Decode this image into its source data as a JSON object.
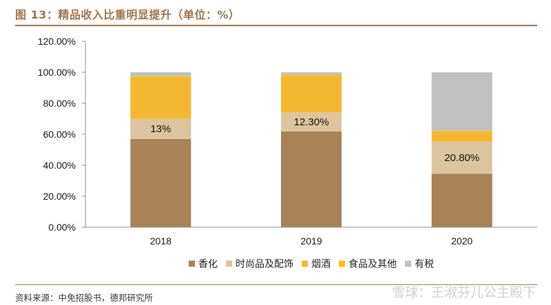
{
  "figure": {
    "title": "图 13：精品收入比重明显提升（单位：%）",
    "source": "资料来源：中免招股书，德邦研究所",
    "watermark": "雪球：王淑芬儿公主殿下"
  },
  "chart_data": {
    "type": "bar",
    "stacked": true,
    "title": "精品收入比重明显提升（单位：%）",
    "xlabel": "",
    "ylabel": "",
    "ylim": [
      0,
      120
    ],
    "yticks": [
      "0.00%",
      "20.00%",
      "40.00%",
      "60.00%",
      "80.00%",
      "100.00%",
      "120.00%"
    ],
    "categories": [
      "2018",
      "2019",
      "2020"
    ],
    "series": [
      {
        "name": "香化",
        "color": "#a98258",
        "values": [
          57.0,
          61.8,
          34.5
        ]
      },
      {
        "name": "时尚品及配饰",
        "color": "#dcc49e",
        "values": [
          13.0,
          12.3,
          20.8
        ]
      },
      {
        "name": "烟酒",
        "color": "#f5b731",
        "values": [
          26.0,
          23.2,
          6.6
        ]
      },
      {
        "name": "食品及其他",
        "color": "#ffc000",
        "values": [
          1.2,
          1.0,
          0.4
        ]
      },
      {
        "name": "有税",
        "color": "#c0c0c0",
        "values": [
          2.8,
          1.7,
          37.7
        ]
      }
    ],
    "data_labels": [
      {
        "category": "2018",
        "series": "时尚品及配饰",
        "text": "13%"
      },
      {
        "category": "2019",
        "series": "时尚品及配饰",
        "text": "12.30%"
      },
      {
        "category": "2020",
        "series": "时尚品及配饰",
        "text": "20.80%"
      }
    ],
    "legend_position": "bottom",
    "grid": false
  }
}
